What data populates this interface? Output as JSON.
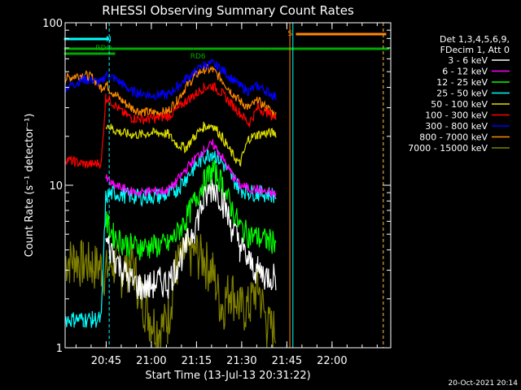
{
  "chart_data": {
    "type": "line",
    "title": "RHESSI Observing Summary Count Rates",
    "xlabel": "Start Time (13-Jul-13 20:31:22)",
    "ylabel": "Count Rate (s⁻¹ detector⁻¹)",
    "y_scale": "log",
    "ylim": [
      1,
      100
    ],
    "xlim": [
      "20:31:22",
      "22:19:30"
    ],
    "x_ticks": [
      "20:45",
      "21:00",
      "21:15",
      "21:30",
      "21:45",
      "22:00"
    ],
    "y_ticks": [
      "1",
      "10",
      "100"
    ],
    "footer_date": "20-Oct-2021 20:14",
    "legend": {
      "header": [
        "Det 1,3,4,5,6,9,",
        "FDecim 1, Att 0"
      ],
      "entries": [
        {
          "label": "3 - 6 keV",
          "color": "#ffffff"
        },
        {
          "label": "6 - 12 keV",
          "color": "#ff00ff"
        },
        {
          "label": "12 - 25 keV",
          "color": "#00ff00"
        },
        {
          "label": "25 - 50 keV",
          "color": "#00ffff"
        },
        {
          "label": "50 - 100 keV",
          "color": "#dddd00"
        },
        {
          "label": "100 - 300 keV",
          "color": "#ff0000"
        },
        {
          "label": "300 - 800 keV",
          "color": "#0000ff"
        },
        {
          "label": "800 - 7000 keV",
          "color": "#ff8800"
        },
        {
          "label": "7000 - 15000 keV",
          "color": "#808000"
        }
      ]
    },
    "flags": [
      {
        "label": "RDO",
        "color": "#00aa00",
        "segments": [
          [
            "20:31",
            "20:48"
          ]
        ]
      },
      {
        "label": "RD6",
        "color": "#00aa00",
        "segments": [
          [
            "20:31",
            "21:14"
          ],
          [
            "21:14",
            "21:40"
          ],
          [
            "21:40",
            "22:19"
          ]
        ]
      },
      {
        "label": "N",
        "color": "#00ffff",
        "segments": [
          [
            "20:31",
            "20:46"
          ]
        ]
      },
      {
        "label": "S",
        "color": "#ff8800",
        "segments": [
          [
            "21:48",
            "22:18"
          ]
        ]
      }
    ],
    "vertical_markers": [
      {
        "time": "20:46",
        "color": "#00ffff",
        "style": "dashed"
      },
      {
        "time": "21:46",
        "color": "#ff8800",
        "style": "solid"
      },
      {
        "time": "21:47",
        "color": "#00ffff",
        "style": "solid"
      },
      {
        "time": "22:17",
        "color": "#00ffff",
        "style": "dashed"
      },
      {
        "time": "22:17",
        "color": "#ff8800",
        "style": "dashed"
      }
    ],
    "x_minutes": [
      0,
      3,
      6,
      9,
      12,
      13.5,
      16,
      19,
      22,
      25,
      28,
      31,
      34,
      37,
      40,
      43,
      46,
      49,
      52,
      55,
      58,
      61,
      64,
      67,
      70,
      73,
      76
    ],
    "series": [
      {
        "name": "3 - 6 keV",
        "color": "#ffffff",
        "values": [
          null,
          null,
          null,
          null,
          null,
          4.5,
          3.8,
          3.0,
          2.6,
          2.4,
          2.4,
          2.6,
          2.5,
          3.2,
          4.2,
          5.6,
          8.0,
          10.0,
          8.5,
          5.8,
          4.3,
          3.4,
          3.0,
          2.8,
          2.8,
          null,
          null
        ]
      },
      {
        "name": "6 - 12 keV",
        "color": "#ff00ff",
        "values": [
          null,
          null,
          null,
          null,
          null,
          11.0,
          10.0,
          9.6,
          9.2,
          9.0,
          9.2,
          9.2,
          9.3,
          10.5,
          12.5,
          14.5,
          16.5,
          18.0,
          15.0,
          12.0,
          10.0,
          9.6,
          9.4,
          9.0,
          8.8,
          null,
          null
        ]
      },
      {
        "name": "12 - 25 keV",
        "color": "#00ff00",
        "values": [
          null,
          null,
          null,
          null,
          null,
          6.0,
          5.0,
          4.5,
          4.3,
          4.2,
          4.2,
          4.3,
          4.3,
          5.0,
          6.2,
          8.0,
          10.5,
          12.5,
          10.5,
          7.5,
          5.6,
          5.0,
          4.8,
          4.6,
          4.6,
          null,
          null
        ]
      },
      {
        "name": "25 - 50 keV",
        "color": "#00ffff",
        "values": [
          1.5,
          1.5,
          1.5,
          1.5,
          1.5,
          8.5,
          9.0,
          8.8,
          8.6,
          8.5,
          8.6,
          8.6,
          8.7,
          9.5,
          11.0,
          13.0,
          15.0,
          16.0,
          14.0,
          11.5,
          9.6,
          9.1,
          9.0,
          8.9,
          8.7,
          null,
          null
        ]
      },
      {
        "name": "50 - 100 keV",
        "color": "#dddd00",
        "values": [
          null,
          null,
          null,
          null,
          null,
          24.0,
          22.0,
          21.0,
          20.5,
          20.5,
          21.0,
          21.0,
          20.8,
          18.0,
          17.0,
          20.0,
          23.0,
          23.5,
          20.0,
          16.0,
          13.5,
          19.5,
          20.5,
          21.0,
          21.0,
          null,
          null
        ]
      },
      {
        "name": "100 - 300 keV",
        "color": "#ff0000",
        "values": [
          14.5,
          14.0,
          13.5,
          13.5,
          13.8,
          35.0,
          32.0,
          28.0,
          26.0,
          25.5,
          25.5,
          26.0,
          26.5,
          29.0,
          33.0,
          36.0,
          40.0,
          41.0,
          37.0,
          32.0,
          28.0,
          24.0,
          30.0,
          28.0,
          26.0,
          null,
          null
        ]
      },
      {
        "name": "300 - 800 keV",
        "color": "#0000ff",
        "values": [
          40.0,
          42.0,
          45.0,
          44.0,
          43.0,
          48.0,
          46.0,
          42.0,
          38.0,
          37.0,
          36.0,
          36.0,
          36.0,
          40.0,
          45.0,
          50.0,
          55.0,
          56.0,
          52.0,
          46.0,
          41.0,
          38.0,
          41.0,
          38.0,
          35.0,
          null,
          null
        ]
      },
      {
        "name": "800 - 7000 keV",
        "color": "#ff8800",
        "values": [
          45.0,
          47.0,
          48.0,
          46.0,
          40.0,
          42.0,
          37.0,
          33.0,
          30.0,
          28.5,
          28.0,
          28.0,
          28.5,
          33.0,
          40.0,
          47.0,
          52.0,
          51.0,
          45.0,
          38.0,
          33.0,
          30.0,
          33.0,
          30.0,
          27.0,
          null,
          null
        ]
      },
      {
        "name": "7000 - 15000 keV",
        "color": "#808000",
        "values": [
          3.5,
          3.6,
          3.4,
          3.3,
          3.2,
          3.0,
          3.4,
          3.0,
          3.6,
          2.2,
          1.6,
          1.3,
          1.5,
          3.3,
          3.8,
          4.0,
          3.6,
          3.0,
          1.8,
          2.4,
          1.8,
          1.8,
          2.5,
          1.4,
          1.3,
          null,
          null
        ]
      }
    ]
  }
}
